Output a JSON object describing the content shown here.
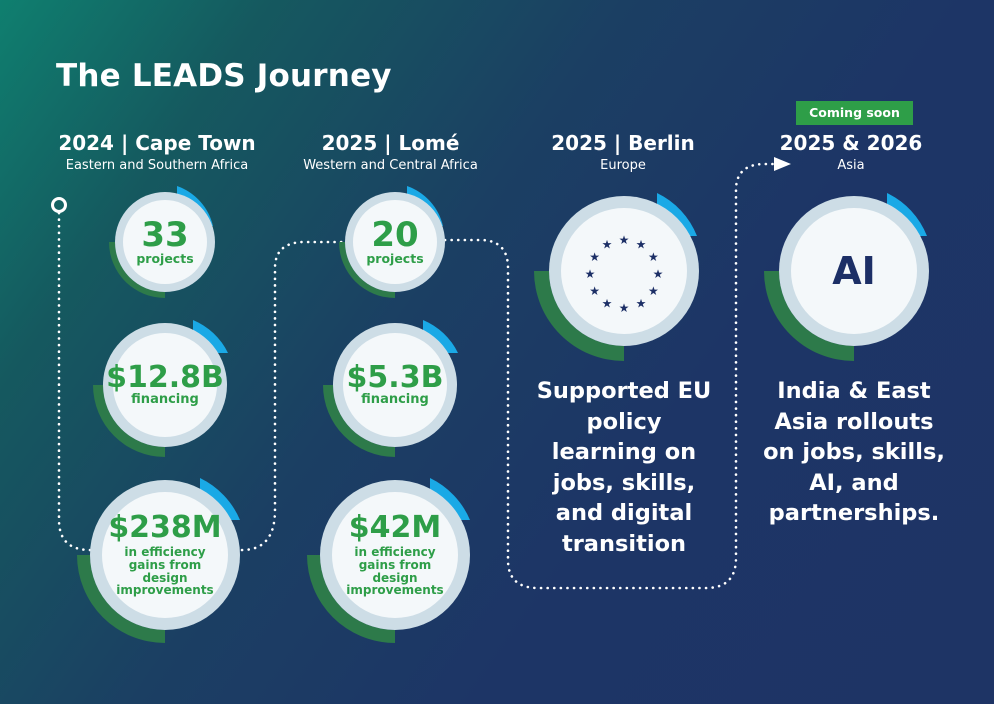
{
  "title": "The LEADS Journey",
  "badge": "Coming soon",
  "columns": [
    {
      "year": "2024 | Cape Town",
      "region": "Eastern and Southern Africa"
    },
    {
      "year": "2025 | Lomé",
      "region": "Western and Central Africa"
    },
    {
      "year": "2025 | Berlin",
      "region": "Europe"
    },
    {
      "year": "2025 & 2026",
      "region": "Asia"
    }
  ],
  "stats": {
    "capetown": [
      {
        "value": "33",
        "label": "projects"
      },
      {
        "value": "$12.8B",
        "label": "financing"
      },
      {
        "value": "$238M",
        "label": "in efficiency gains from design improvements"
      }
    ],
    "lome": [
      {
        "value": "20",
        "label": "projects"
      },
      {
        "value": "$5.3B",
        "label": "financing"
      },
      {
        "value": "$42M",
        "label": "in efficiency gains from design improvements"
      }
    ]
  },
  "berlin_text": "Supported EU policy learning on jobs, skills, and digital transition",
  "asia_icon_text": "AI",
  "asia_text": "India & East Asia rollouts on jobs, skills, AI, and partnerships.",
  "colors": {
    "green": "#2e9e48",
    "dark_green": "#2d7a4a",
    "blue": "#1aa9e6",
    "ring": "#cddde6",
    "fill": "#f4f8fa",
    "navy": "#1c2f66"
  },
  "icons": {
    "eu": "eu-stars-icon",
    "start": "start-circle-icon",
    "arrow": "arrow-right-icon"
  }
}
